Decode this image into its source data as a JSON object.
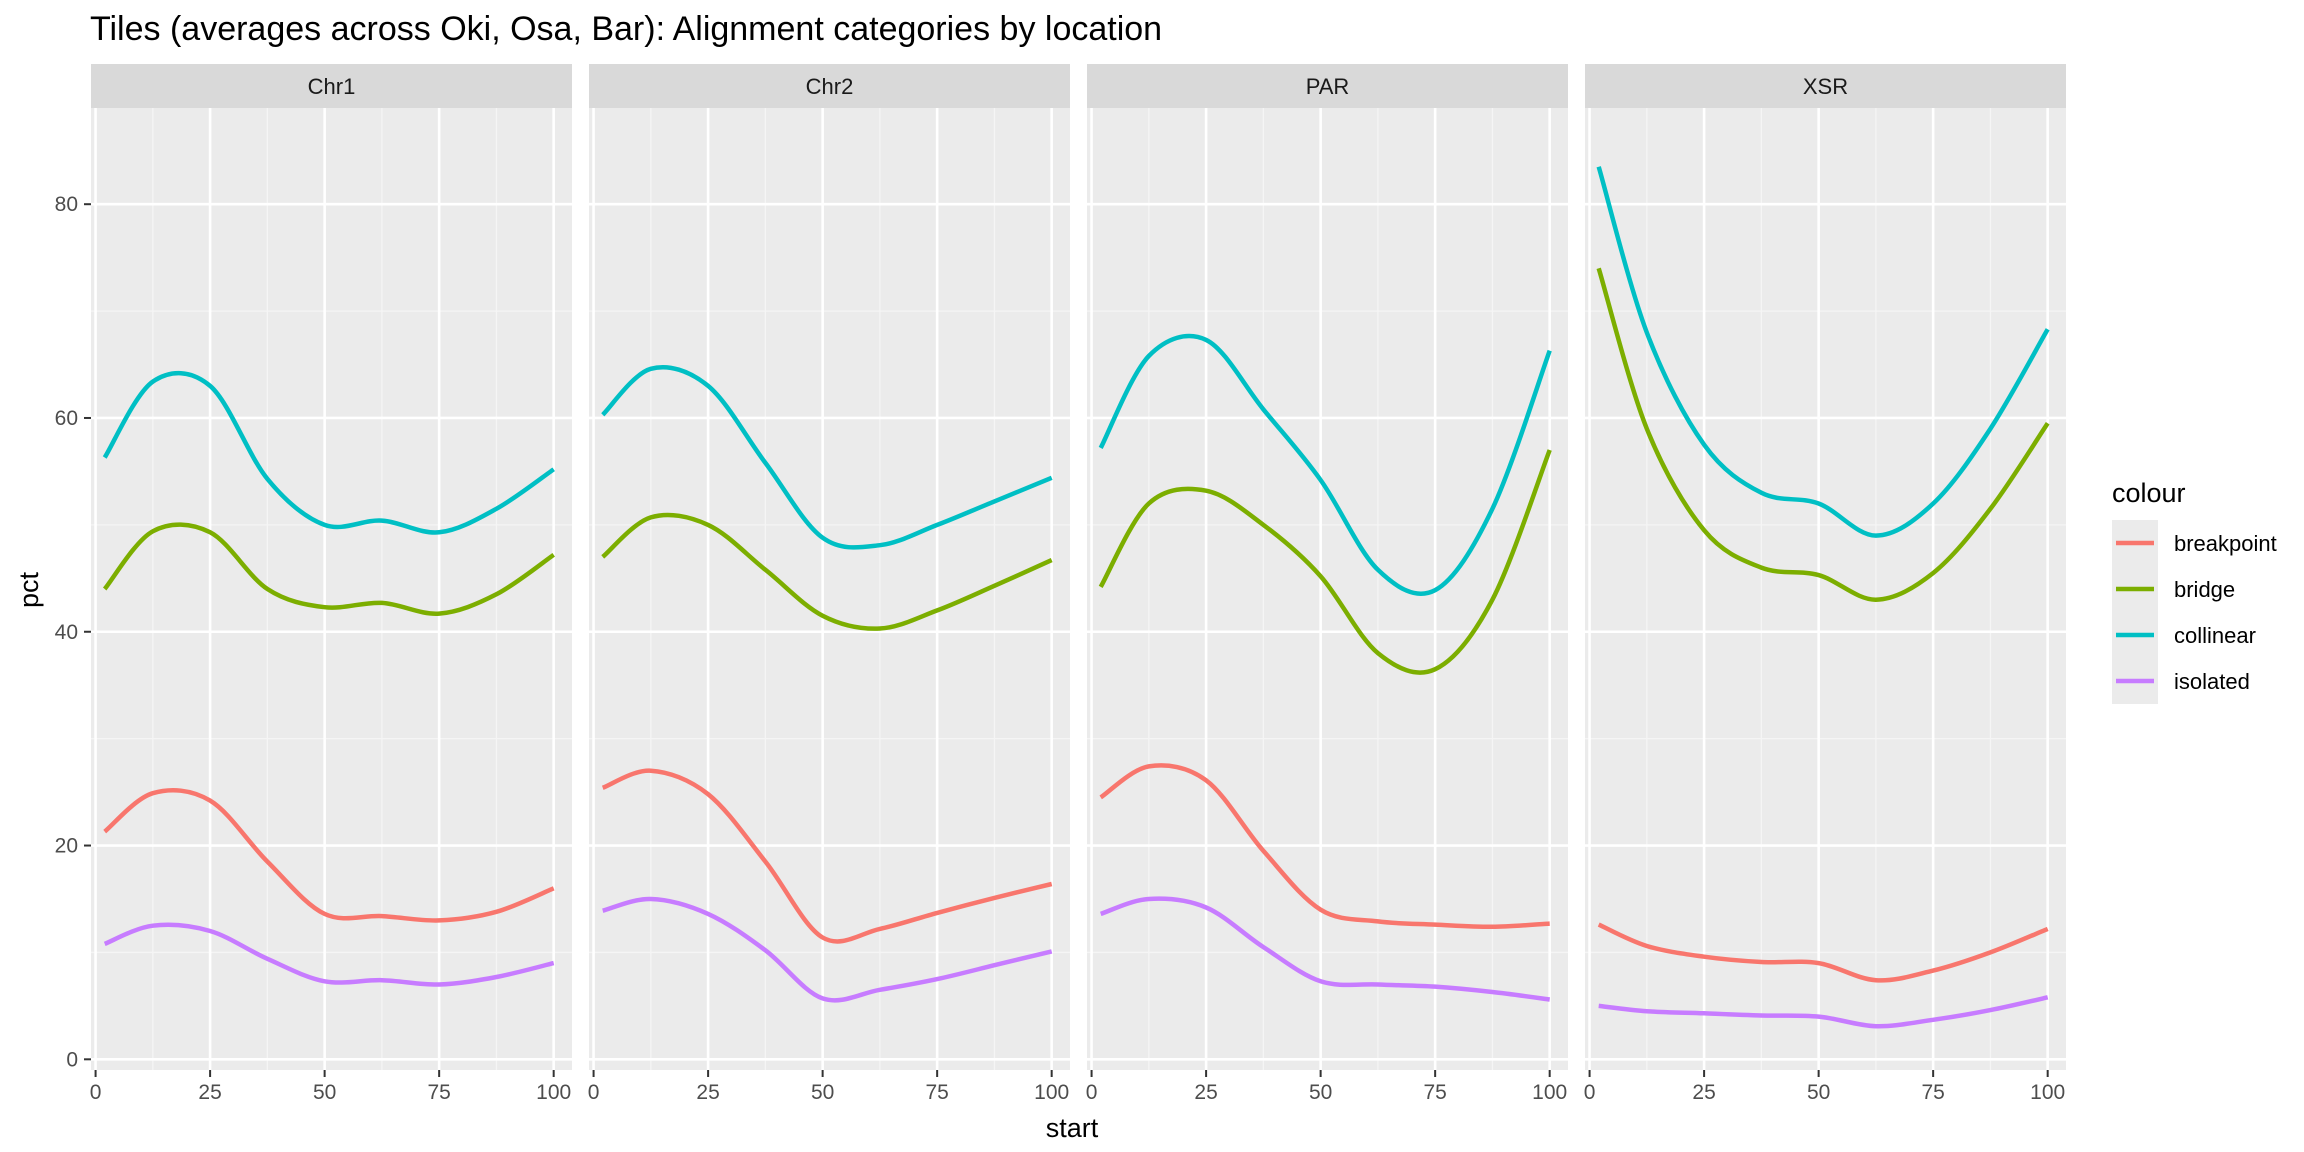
{
  "chart_data": {
    "type": "line",
    "title": "Tiles (averages across Oki, Osa, Bar): Alignment categories by location",
    "xlabel": "start",
    "ylabel": "pct",
    "xlim": [
      -1,
      104
    ],
    "ylim": [
      -1,
      89
    ],
    "x_ticks": [
      0,
      25,
      50,
      75,
      100
    ],
    "y_ticks": [
      0,
      20,
      40,
      60,
      80
    ],
    "grid": true,
    "legend": {
      "title": "colour",
      "position": "right",
      "entries": [
        "breakpoint",
        "bridge",
        "collinear",
        "isolated"
      ]
    },
    "colors": {
      "breakpoint": "#F8766D",
      "bridge": "#7CAE00",
      "collinear": "#00BFC4",
      "isolated": "#C77CFF"
    },
    "x": [
      2,
      12.5,
      25,
      37.5,
      50,
      62.5,
      75,
      87.5,
      100
    ],
    "panels": [
      {
        "name": "Chr1",
        "series": [
          {
            "name": "breakpoint",
            "values": [
              21.3,
              24.9,
              24.2,
              18.5,
              13.6,
              13.4,
              13.0,
              13.8,
              16.0
            ]
          },
          {
            "name": "bridge",
            "values": [
              44.0,
              49.4,
              49.3,
              44.0,
              42.3,
              42.7,
              41.7,
              43.5,
              47.2
            ]
          },
          {
            "name": "collinear",
            "values": [
              56.3,
              63.4,
              63.0,
              54.3,
              50.0,
              50.4,
              49.3,
              51.5,
              55.2
            ]
          },
          {
            "name": "isolated",
            "values": [
              10.8,
              12.5,
              12.0,
              9.4,
              7.3,
              7.4,
              7.0,
              7.7,
              9.0
            ]
          }
        ]
      },
      {
        "name": "Chr2",
        "series": [
          {
            "name": "breakpoint",
            "values": [
              25.4,
              27.0,
              24.8,
              18.5,
              11.4,
              12.2,
              13.7,
              15.1,
              16.4
            ]
          },
          {
            "name": "bridge",
            "values": [
              47.0,
              50.7,
              50.0,
              45.8,
              41.5,
              40.3,
              42.0,
              44.3,
              46.7
            ]
          },
          {
            "name": "collinear",
            "values": [
              60.3,
              64.6,
              63.0,
              55.8,
              48.8,
              48.1,
              50.0,
              52.2,
              54.4
            ]
          },
          {
            "name": "isolated",
            "values": [
              13.9,
              15.0,
              13.6,
              10.2,
              5.7,
              6.5,
              7.5,
              8.8,
              10.1
            ]
          }
        ]
      },
      {
        "name": "PAR",
        "series": [
          {
            "name": "breakpoint",
            "values": [
              24.5,
              27.4,
              26.1,
              19.5,
              14.0,
              12.9,
              12.6,
              12.4,
              12.7
            ]
          },
          {
            "name": "bridge",
            "values": [
              44.2,
              52.0,
              53.2,
              50.0,
              45.2,
              38.0,
              36.5,
              43.0,
              57.0
            ]
          },
          {
            "name": "collinear",
            "values": [
              57.2,
              65.8,
              67.3,
              60.8,
              54.2,
              45.8,
              43.9,
              51.5,
              66.3
            ]
          },
          {
            "name": "isolated",
            "values": [
              13.6,
              15.0,
              14.2,
              10.5,
              7.3,
              7.0,
              6.8,
              6.3,
              5.6
            ]
          }
        ]
      },
      {
        "name": "XSR",
        "series": [
          {
            "name": "breakpoint",
            "values": [
              12.6,
              10.6,
              9.6,
              9.1,
              9.0,
              7.4,
              8.3,
              10.0,
              12.2
            ]
          },
          {
            "name": "bridge",
            "values": [
              74.0,
              59.0,
              49.5,
              46.0,
              45.3,
              43.0,
              45.5,
              51.5,
              59.5
            ]
          },
          {
            "name": "collinear",
            "values": [
              83.5,
              68.0,
              57.5,
              53.0,
              52.0,
              49.0,
              52.0,
              59.0,
              68.3
            ]
          },
          {
            "name": "isolated",
            "values": [
              5.0,
              4.5,
              4.3,
              4.1,
              4.0,
              3.1,
              3.7,
              4.6,
              5.8
            ]
          }
        ]
      }
    ]
  }
}
